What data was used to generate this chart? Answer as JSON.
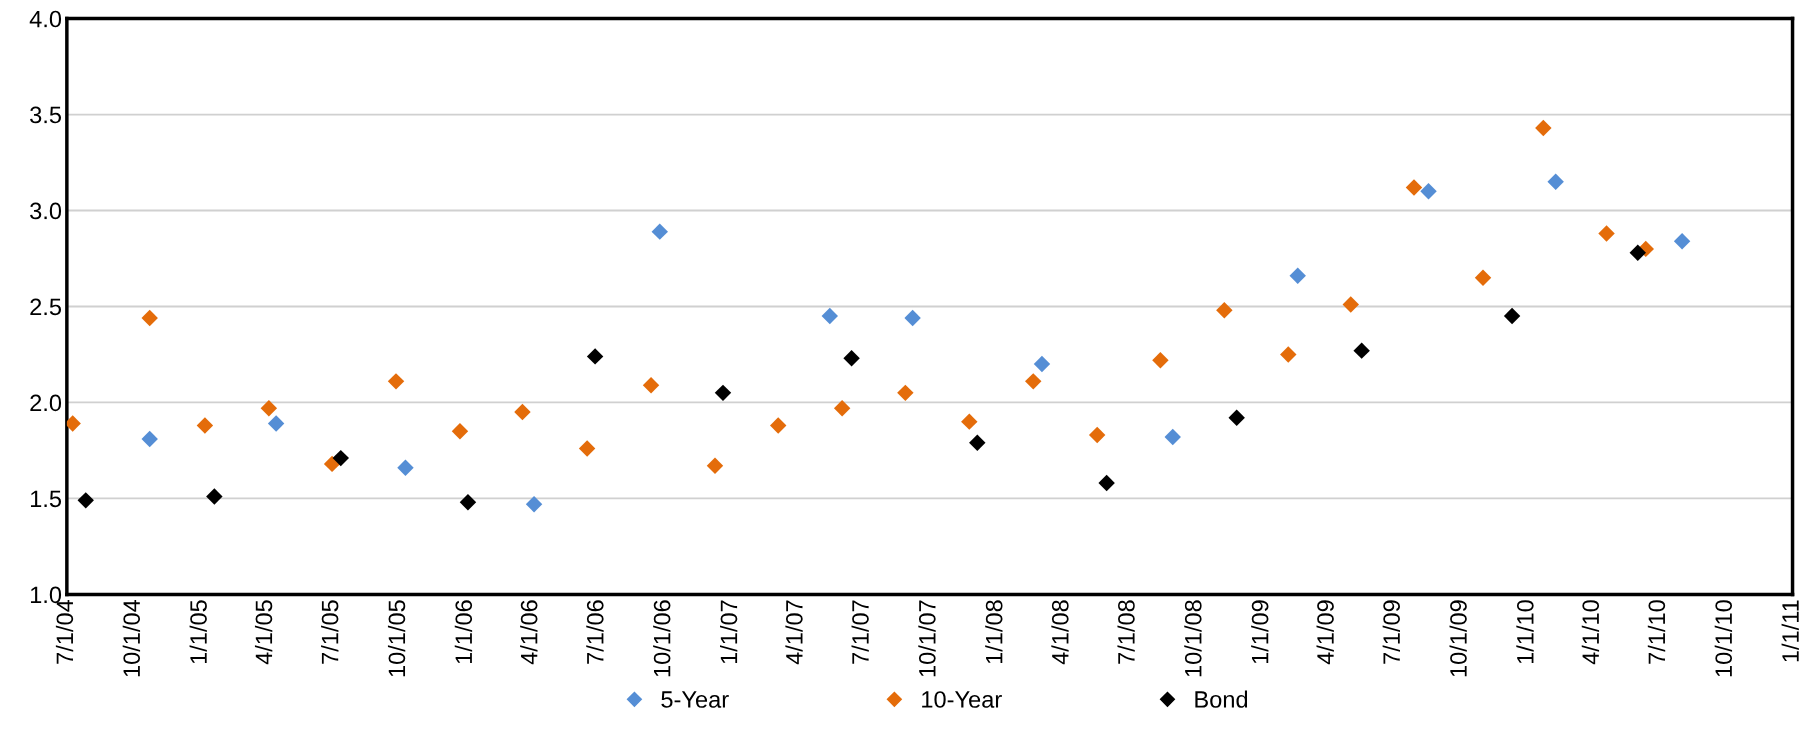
{
  "chart_data": {
    "type": "scatter",
    "marker": "diamond",
    "grid": "y",
    "legend": "bottom",
    "xlim": [
      "2004-07-01",
      "2011-01-01"
    ],
    "xticks": [
      {
        "value": "2004-07-01",
        "label": "7/1/04"
      },
      {
        "value": "2004-10-01",
        "label": "10/1/04"
      },
      {
        "value": "2005-01-01",
        "label": "1/1/05"
      },
      {
        "value": "2005-04-01",
        "label": "4/1/05"
      },
      {
        "value": "2005-07-01",
        "label": "7/1/05"
      },
      {
        "value": "2005-10-01",
        "label": "10/1/05"
      },
      {
        "value": "2006-01-01",
        "label": "1/1/06"
      },
      {
        "value": "2006-04-01",
        "label": "4/1/06"
      },
      {
        "value": "2006-07-01",
        "label": "7/1/06"
      },
      {
        "value": "2006-10-01",
        "label": "10/1/06"
      },
      {
        "value": "2007-01-01",
        "label": "1/1/07"
      },
      {
        "value": "2007-04-01",
        "label": "4/1/07"
      },
      {
        "value": "2007-07-01",
        "label": "7/1/07"
      },
      {
        "value": "2007-10-01",
        "label": "10/1/07"
      },
      {
        "value": "2008-01-01",
        "label": "1/1/08"
      },
      {
        "value": "2008-04-01",
        "label": "4/1/08"
      },
      {
        "value": "2008-07-01",
        "label": "7/1/08"
      },
      {
        "value": "2008-10-01",
        "label": "10/1/08"
      },
      {
        "value": "2009-01-01",
        "label": "1/1/09"
      },
      {
        "value": "2009-04-01",
        "label": "4/1/09"
      },
      {
        "value": "2009-07-01",
        "label": "7/1/09"
      },
      {
        "value": "2009-10-01",
        "label": "10/1/09"
      },
      {
        "value": "2010-01-01",
        "label": "1/1/10"
      },
      {
        "value": "2010-04-01",
        "label": "4/1/10"
      },
      {
        "value": "2010-07-01",
        "label": "7/1/10"
      },
      {
        "value": "2010-10-01",
        "label": "10/1/10"
      },
      {
        "value": "2011-01-01",
        "label": "1/1/11"
      }
    ],
    "ylim": [
      1.0,
      4.0
    ],
    "yticks": [
      {
        "value": 1.0,
        "label": "1.0"
      },
      {
        "value": 1.5,
        "label": "1.5"
      },
      {
        "value": 2.0,
        "label": "2.0"
      },
      {
        "value": 2.5,
        "label": "2.5"
      },
      {
        "value": 3.0,
        "label": "3.0"
      },
      {
        "value": 3.5,
        "label": "3.5"
      },
      {
        "value": 4.0,
        "label": "4.0"
      }
    ],
    "series": [
      {
        "name": "5-Year",
        "color": "#558ed5",
        "x": [
          "2004-10-23",
          "2005-04-15",
          "2005-10-10",
          "2006-04-05",
          "2006-09-25",
          "2007-05-17",
          "2007-09-08",
          "2008-03-04",
          "2008-08-31",
          "2009-02-19",
          "2009-08-18",
          "2010-02-09",
          "2010-08-02"
        ],
        "values": [
          1.81,
          1.89,
          1.66,
          1.47,
          2.89,
          2.45,
          2.44,
          2.2,
          1.82,
          2.66,
          3.1,
          3.15,
          2.84
        ]
      },
      {
        "name": "10-Year",
        "color": "#e46c0a",
        "x": [
          "2004-07-09",
          "2004-10-23",
          "2005-01-07",
          "2005-04-05",
          "2005-07-01",
          "2005-09-27",
          "2005-12-24",
          "2006-03-20",
          "2006-06-17",
          "2006-09-13",
          "2006-12-10",
          "2007-03-07",
          "2007-06-03",
          "2007-08-29",
          "2007-11-25",
          "2008-02-21",
          "2008-05-19",
          "2008-08-14",
          "2008-11-10",
          "2009-02-06",
          "2009-05-03",
          "2009-07-29",
          "2009-11-01",
          "2010-01-23",
          "2010-04-20",
          "2010-06-13"
        ],
        "values": [
          1.89,
          2.44,
          1.88,
          1.97,
          1.68,
          2.11,
          1.85,
          1.95,
          1.76,
          2.09,
          1.67,
          1.88,
          1.97,
          2.05,
          1.9,
          2.11,
          1.83,
          2.22,
          2.48,
          2.25,
          2.51,
          3.12,
          2.65,
          3.43,
          2.88,
          2.8
        ]
      },
      {
        "name": "Bond",
        "color": "#000000",
        "x": [
          "2004-07-27",
          "2005-01-20",
          "2005-07-13",
          "2006-01-04",
          "2006-06-28",
          "2006-12-21",
          "2007-06-16",
          "2007-12-06",
          "2008-06-01",
          "2008-11-27",
          "2009-05-18",
          "2009-12-11",
          "2010-06-02"
        ],
        "values": [
          1.49,
          1.51,
          1.71,
          1.48,
          2.24,
          2.05,
          2.23,
          1.79,
          1.58,
          1.92,
          2.27,
          2.45,
          2.78
        ]
      }
    ]
  }
}
